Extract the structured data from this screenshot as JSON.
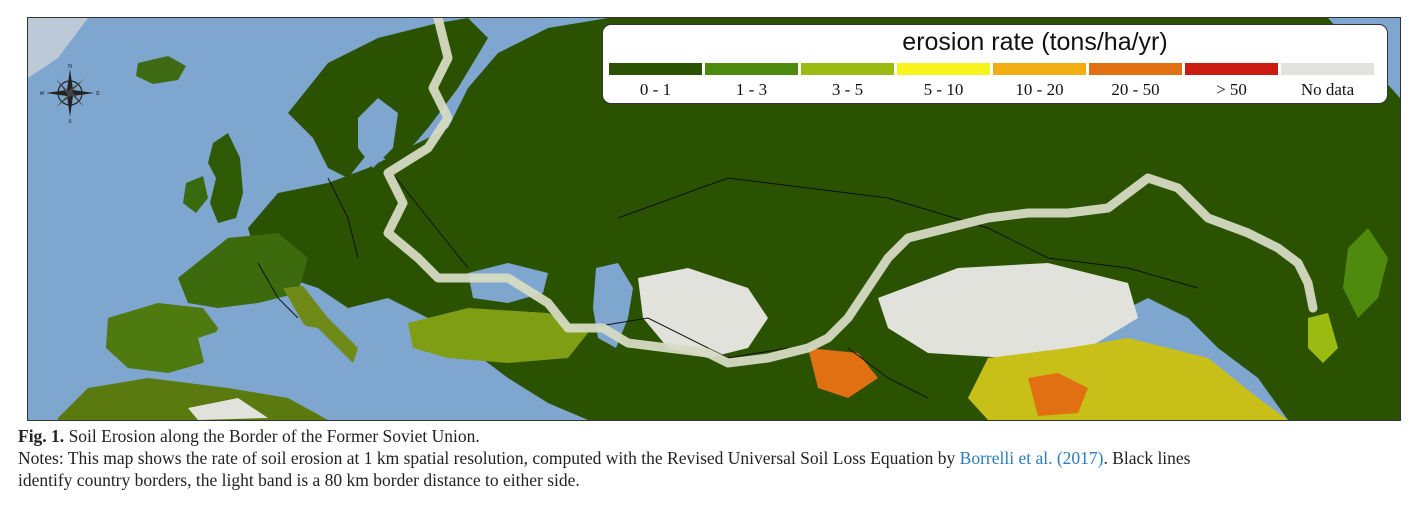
{
  "map": {
    "legend": {
      "title": "erosion rate (tons/ha/yr)",
      "classes": [
        {
          "label": "0 - 1",
          "color": "#2b5200"
        },
        {
          "label": "1 - 3",
          "color": "#4e8a0e"
        },
        {
          "label": "3 - 5",
          "color": "#9bba12"
        },
        {
          "label": "5 - 10",
          "color": "#f7f31c"
        },
        {
          "label": "10 - 20",
          "color": "#f3ad13"
        },
        {
          "label": "20 - 50",
          "color": "#e07011"
        },
        {
          "label": "> 50",
          "color": "#cc1c12"
        },
        {
          "label": "No data",
          "color": "#e2e2dd"
        }
      ]
    },
    "compass": {
      "n": "N",
      "s": "S",
      "e": "E",
      "w": "W"
    },
    "colors": {
      "sea": "#7ea6cf",
      "shallow_sea": "#a9c4dd",
      "land_dark": "#2b5200",
      "border_band": "#d8dcc6",
      "country_border": "#111111"
    }
  },
  "caption": {
    "fig_label": "Fig. 1.",
    "title": " Soil Erosion along the Border of the Former Soviet Union.",
    "notes_before": "Notes: This map shows the rate of soil erosion at 1 km spatial resolution, computed with the Revised Universal Soil Loss Equation by ",
    "citation": "Borrelli et al. (2017)",
    "notes_after": ". Black lines",
    "notes_line2": "identify country borders, the light band is a 80 km border distance to either side."
  }
}
